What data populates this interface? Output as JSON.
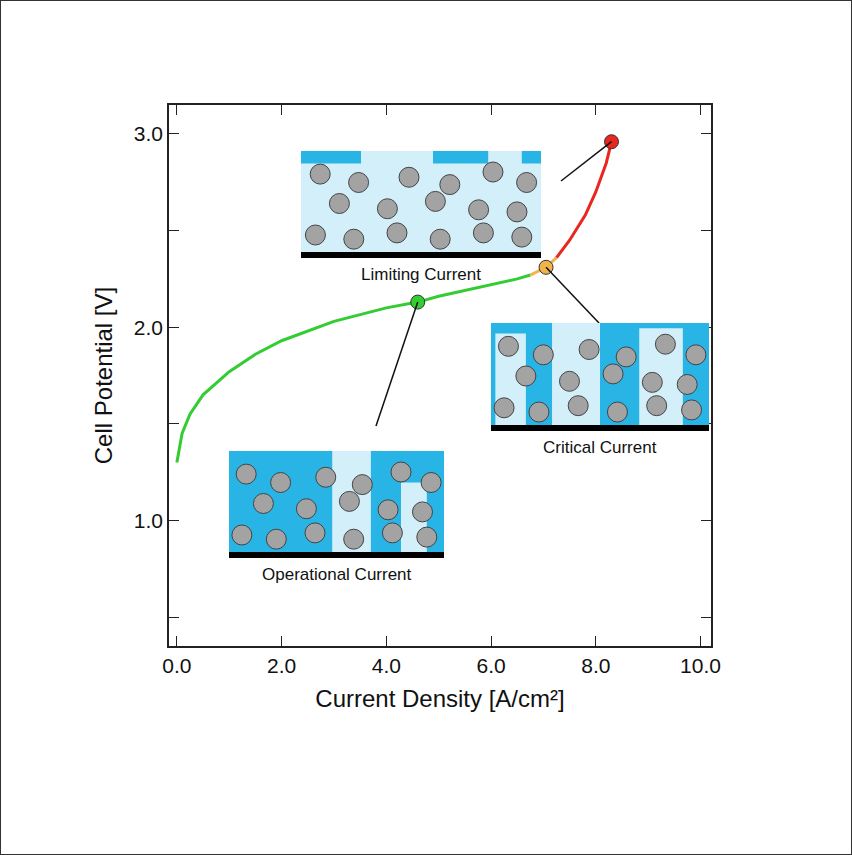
{
  "chart_data": {
    "type": "line",
    "xlabel": "Current Density [A/cm²]",
    "ylabel": "Cell Potential [V]",
    "xlim": [
      -0.15,
      10.2
    ],
    "ylim": [
      0.35,
      3.15
    ],
    "xticks": [
      {
        "value": 0,
        "label": "0.0"
      },
      {
        "value": 2,
        "label": "2.0"
      },
      {
        "value": 4,
        "label": "4.0"
      },
      {
        "value": 6,
        "label": "6.0"
      },
      {
        "value": 8,
        "label": "8.0"
      },
      {
        "value": 10,
        "label": "10.0"
      }
    ],
    "yticks": [
      {
        "value": 1,
        "label": "1.0"
      },
      {
        "value": 2,
        "label": "2.0"
      },
      {
        "value": 3,
        "label": "3.0"
      }
    ],
    "grid": false,
    "series": [
      {
        "color": "#33cc33",
        "x": [
          0,
          0.1,
          0.25,
          0.5,
          1.0,
          1.5,
          2.0,
          3.0,
          4.0,
          4.6,
          5.0,
          6.0,
          6.5,
          6.75
        ],
        "values": [
          1.3,
          1.45,
          1.55,
          1.65,
          1.77,
          1.86,
          1.93,
          2.03,
          2.1,
          2.13,
          2.16,
          2.22,
          2.25,
          2.27
        ]
      },
      {
        "color": "#f0b44c",
        "x": [
          6.75,
          7.05,
          7.25
        ],
        "values": [
          2.27,
          2.31,
          2.36
        ]
      },
      {
        "color": "#e8271e",
        "x": [
          7.25,
          7.5,
          7.8,
          8.0,
          8.2,
          8.3
        ],
        "values": [
          2.36,
          2.45,
          2.58,
          2.7,
          2.85,
          2.96
        ]
      }
    ],
    "points": [
      {
        "label": "Operational Current",
        "x": 4.6,
        "y": 2.13,
        "color": "#33cc33"
      },
      {
        "label": "Critical Current",
        "x": 7.05,
        "y": 2.31,
        "color": "#f0b44c"
      },
      {
        "label": "Limiting Current",
        "x": 8.3,
        "y": 2.96,
        "color": "#e8271e"
      }
    ]
  }
}
